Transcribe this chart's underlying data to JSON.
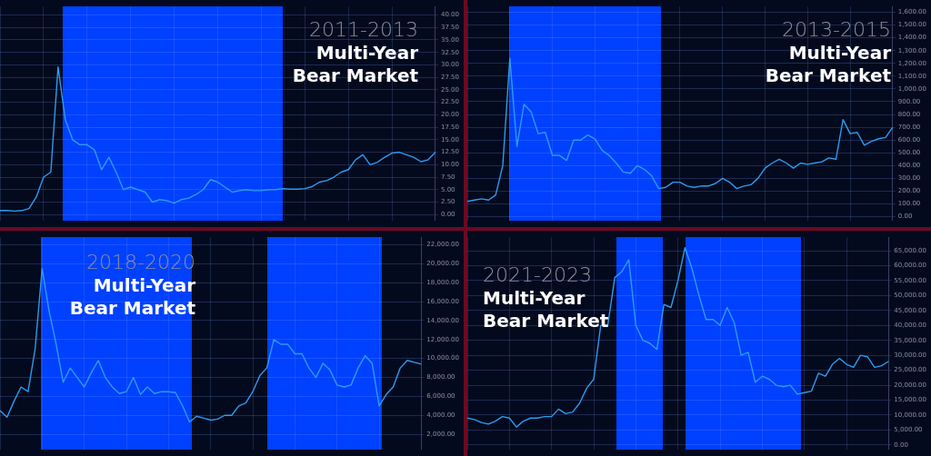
{
  "chart_data": [
    {
      "type": "line",
      "title": "2011-2013",
      "subtitle": "Multi-Year Bear Market",
      "grid": true,
      "tick_labels": "y",
      "categories": [
        null,
        null,
        null,
        null,
        null,
        null,
        null,
        null,
        null,
        null,
        null,
        null,
        null,
        null,
        null,
        null,
        null,
        null,
        null,
        null,
        null,
        null,
        null,
        null,
        null,
        null,
        null,
        null,
        null,
        null,
        null,
        null,
        null,
        null,
        null,
        null,
        null,
        null,
        null,
        null,
        null,
        null,
        null,
        null,
        null,
        null,
        null,
        null,
        null,
        null,
        null,
        null,
        null,
        null,
        null,
        null,
        null,
        null,
        null,
        null,
        null
      ],
      "series": [
        {
          "color": "#2d9bf0",
          "values": [
            0.8,
            0.8,
            0.7,
            0.8,
            1.2,
            3.5,
            7.5,
            8.5,
            29.6,
            19,
            15,
            14,
            14,
            13,
            9,
            11.5,
            8.5,
            5,
            5.5,
            5,
            4.5,
            2.5,
            3,
            2.8,
            2.3,
            3,
            3.3,
            4,
            5,
            7,
            6.5,
            5.5,
            4.5,
            4.8,
            5,
            4.8,
            4.8,
            5,
            5,
            5.2,
            5.1,
            5.1,
            5.2,
            5.6,
            6.5,
            6.8,
            7.5,
            8.5,
            9,
            11,
            12,
            10,
            10.5,
            11.5,
            12.3,
            12.5,
            12,
            11.5,
            10.6,
            11,
            12.5
          ]
        }
      ],
      "ylim": [
        -1.2,
        41.7
      ],
      "yticks": [
        {
          "value": 0,
          "label": "0.00"
        },
        {
          "value": 2.5,
          "label": "2.50"
        },
        {
          "value": 5,
          "label": "5.00"
        },
        {
          "value": 7.5,
          "label": "7.50"
        },
        {
          "value": 10,
          "label": "10.00"
        },
        {
          "value": 12.5,
          "label": "12.50"
        },
        {
          "value": 15,
          "label": "15.00"
        },
        {
          "value": 17.5,
          "label": "17.50"
        },
        {
          "value": 20,
          "label": "20.00"
        },
        {
          "value": 22.5,
          "label": "22.50"
        },
        {
          "value": 25,
          "label": "25.00"
        },
        {
          "value": 27.5,
          "label": "27.50"
        },
        {
          "value": 30,
          "label": "30.00"
        },
        {
          "value": 32.5,
          "label": "32.50"
        },
        {
          "value": 35,
          "label": "35.00"
        },
        {
          "value": 37.5,
          "label": "37.50"
        },
        {
          "value": 40,
          "label": "40.00"
        }
      ],
      "ylabel": null
    },
    {
      "type": "line",
      "title": "2013-2015",
      "subtitle": "Multi-Year Bear Market",
      "grid": true,
      "tick_labels": "y",
      "categories": [
        null,
        null,
        null,
        null,
        null,
        null,
        null,
        null,
        null,
        null,
        null,
        null,
        null,
        null,
        null,
        null,
        null,
        null,
        null,
        null,
        null,
        null,
        null,
        null,
        null,
        null,
        null,
        null,
        null,
        null,
        null,
        null,
        null,
        null,
        null,
        null,
        null,
        null,
        null,
        null,
        null,
        null,
        null,
        null,
        null,
        null,
        null,
        null,
        null,
        null,
        null,
        null,
        null,
        null,
        null,
        null,
        null,
        null,
        null,
        null,
        null
      ],
      "series": [
        {
          "color": "#2d9bf0",
          "values": [
            120,
            130,
            140,
            130,
            170,
            400,
            1240,
            550,
            880,
            820,
            650,
            660,
            480,
            480,
            440,
            600,
            600,
            640,
            610,
            520,
            480,
            420,
            350,
            340,
            400,
            370,
            320,
            220,
            230,
            270,
            270,
            240,
            230,
            240,
            240,
            260,
            300,
            270,
            220,
            240,
            250,
            300,
            380,
            420,
            450,
            420,
            380,
            420,
            410,
            420,
            430,
            460,
            450,
            760,
            650,
            660,
            560,
            590,
            610,
            620,
            700
          ]
        }
      ],
      "ylim": [
        -30,
        1645
      ],
      "yticks": [
        {
          "value": 0,
          "label": "0.00"
        },
        {
          "value": 100,
          "label": "100.00"
        },
        {
          "value": 200,
          "label": "200.00"
        },
        {
          "value": 300,
          "label": "300.00"
        },
        {
          "value": 400,
          "label": "400.00"
        },
        {
          "value": 500,
          "label": "500.00"
        },
        {
          "value": 600,
          "label": "600.00"
        },
        {
          "value": 700,
          "label": "700.00"
        },
        {
          "value": 800,
          "label": "800.00"
        },
        {
          "value": 900,
          "label": "900.00"
        },
        {
          "value": 1000,
          "label": "1,000.00"
        },
        {
          "value": 1100,
          "label": "1,100.00"
        },
        {
          "value": 1200,
          "label": "1,200.00"
        },
        {
          "value": 1300,
          "label": "1,300.00"
        },
        {
          "value": 1400,
          "label": "1,400.00"
        },
        {
          "value": 1500,
          "label": "1,500.00"
        },
        {
          "value": 1600,
          "label": "1,600.00"
        }
      ],
      "ylabel": null
    },
    {
      "type": "line",
      "title": "2018-2020",
      "subtitle": "Multi-Year Bear Market",
      "grid": true,
      "tick_labels": "y",
      "categories": [
        null,
        null,
        null,
        null,
        null,
        null,
        null,
        null,
        null,
        null,
        null,
        null,
        null,
        null,
        null,
        null,
        null,
        null,
        null,
        null,
        null,
        null,
        null,
        null,
        null,
        null,
        null,
        null,
        null,
        null,
        null,
        null,
        null,
        null,
        null,
        null,
        null,
        null,
        null,
        null,
        null,
        null,
        null,
        null,
        null,
        null,
        null,
        null,
        null,
        null,
        null,
        null,
        null,
        null,
        null,
        null,
        null,
        null,
        null,
        null,
        null
      ],
      "series": [
        {
          "color": "#2d9bf0",
          "values": [
            4500,
            3800,
            5500,
            7000,
            6500,
            11000,
            19500,
            15000,
            11500,
            7500,
            9000,
            8000,
            7000,
            8500,
            9800,
            8000,
            7000,
            6300,
            6500,
            8000,
            6200,
            7000,
            6300,
            6500,
            6500,
            6400,
            5000,
            3300,
            3900,
            3700,
            3500,
            3600,
            4000,
            4000,
            5000,
            5300,
            6500,
            8200,
            9000,
            12000,
            11500,
            11500,
            10500,
            10500,
            9000,
            8000,
            9500,
            8800,
            7200,
            7000,
            7200,
            9000,
            10300,
            9500,
            5000,
            6200,
            7000,
            9000,
            9800,
            9600,
            9400
          ]
        }
      ],
      "ylim": [
        400,
        22800
      ],
      "yticks": [
        {
          "value": 2000,
          "label": "2,000.00"
        },
        {
          "value": 4000,
          "label": "4,000.00"
        },
        {
          "value": 6000,
          "label": "6,000.00"
        },
        {
          "value": 8000,
          "label": "8,000.00"
        },
        {
          "value": 10000,
          "label": "10,000.00"
        },
        {
          "value": 12000,
          "label": "12,000.00"
        },
        {
          "value": 14000,
          "label": "14,000.00"
        },
        {
          "value": 16000,
          "label": "16,000.00"
        },
        {
          "value": 18000,
          "label": "18,000.00"
        },
        {
          "value": 20000,
          "label": "20,000.00"
        },
        {
          "value": 22000,
          "label": "22,000.00"
        }
      ],
      "ylabel": null
    },
    {
      "type": "line",
      "title": "2021-2023",
      "subtitle": "Multi-Year Bear Market",
      "grid": true,
      "tick_labels": "y",
      "categories": [
        null,
        null,
        null,
        null,
        null,
        null,
        null,
        null,
        null,
        null,
        null,
        null,
        null,
        null,
        null,
        null,
        null,
        null,
        null,
        null,
        null,
        null,
        null,
        null,
        null,
        null,
        null,
        null,
        null,
        null,
        null,
        null,
        null,
        null,
        null,
        null,
        null,
        null,
        null,
        null,
        null,
        null,
        null,
        null,
        null,
        null,
        null,
        null,
        null,
        null,
        null,
        null,
        null,
        null,
        null,
        null,
        null,
        null,
        null,
        null,
        null
      ],
      "series": [
        {
          "color": "#2d9bf0",
          "values": [
            9000,
            8500,
            7500,
            7000,
            8000,
            9500,
            9000,
            6000,
            8000,
            9000,
            9000,
            9500,
            9500,
            12000,
            10500,
            11000,
            14000,
            19000,
            22000,
            40000,
            40000,
            56000,
            58000,
            62000,
            40000,
            35000,
            34000,
            32000,
            47000,
            46000,
            55000,
            66000,
            59000,
            50000,
            42000,
            42000,
            40000,
            46000,
            41000,
            30000,
            31000,
            21000,
            23000,
            22000,
            20000,
            19500,
            20000,
            17000,
            17500,
            18000,
            24000,
            23000,
            27000,
            29000,
            27000,
            26000,
            30000,
            29500,
            26000,
            26500,
            28000
          ]
        }
      ],
      "ylim": [
        -1500,
        69500
      ],
      "yticks": [
        {
          "value": 0,
          "label": "0.00"
        },
        {
          "value": 5000,
          "label": "5,000.00"
        },
        {
          "value": 10000,
          "label": "10,000.00"
        },
        {
          "value": 15000,
          "label": "15,000.00"
        },
        {
          "value": 20000,
          "label": "20,000.00"
        },
        {
          "value": 25000,
          "label": "25,000.00"
        },
        {
          "value": 30000,
          "label": "30,000.00"
        },
        {
          "value": 35000,
          "label": "35,000.00"
        },
        {
          "value": 40000,
          "label": "40,000.00"
        },
        {
          "value": 45000,
          "label": "45,000.00"
        },
        {
          "value": 50000,
          "label": "50,000.00"
        },
        {
          "value": 55000,
          "label": "55,000.00"
        },
        {
          "value": 60000,
          "label": "60,000.00"
        },
        {
          "value": 65000,
          "label": "65,000.00"
        }
      ],
      "ylabel": null
    }
  ]
}
